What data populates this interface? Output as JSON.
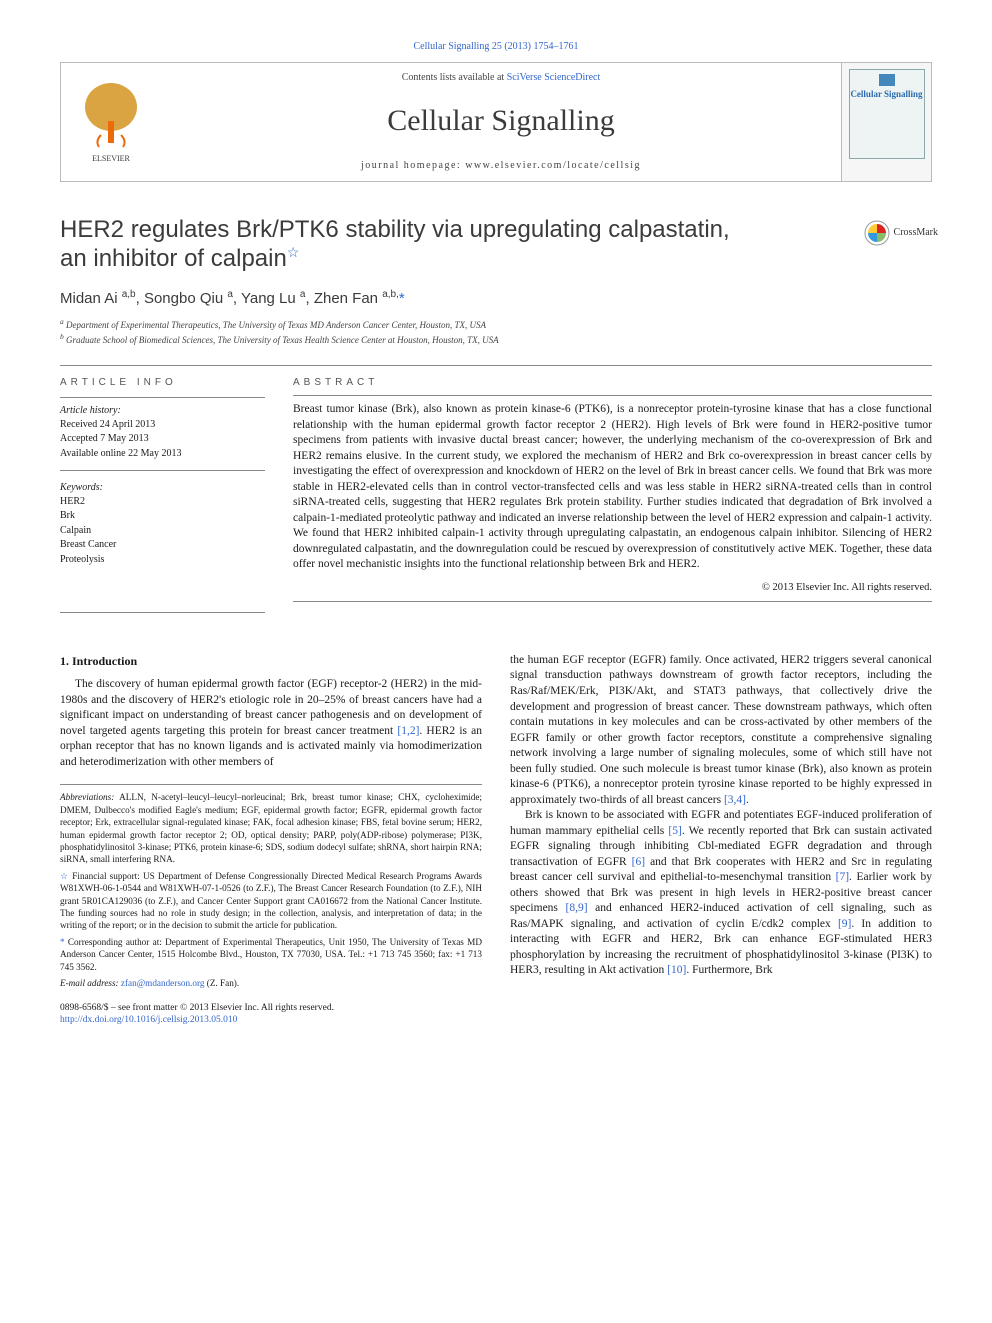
{
  "colors": {
    "link": "#3366cc",
    "text": "#1a1a1a",
    "muted": "#444444",
    "rule": "#888888",
    "elsevier_orange": "#eb6b0a",
    "elsevier_gold": "#d9a441"
  },
  "top_citation_link": "Cellular Signalling 25 (2013) 1754–1761",
  "header": {
    "contents_prefix": "Contents lists available at ",
    "contents_link_text": "SciVerse ScienceDirect",
    "journal_name": "Cellular Signalling",
    "homepage_prefix": "journal homepage: ",
    "homepage_url": "www.elsevier.com/locate/cellsig",
    "cover_title": "Cellular Signalling"
  },
  "article": {
    "title_line1": "HER2 regulates Brk/PTK6 stability via upregulating calpastatin,",
    "title_line2": "an inhibitor of calpain",
    "title_footnote_symbol": "☆",
    "crossmark_label": "CrossMark"
  },
  "authors_line": "Midan Ai <sup>a,b</sup>, Songbo Qiu <sup>a</sup>, Yang Lu <sup>a</sup>, Zhen Fan <sup>a,b,</sup><span class=\"corr-star\">*</span>",
  "affiliations": [
    "a Department of Experimental Therapeutics, The University of Texas MD Anderson Cancer Center, Houston, TX, USA",
    "b Graduate School of Biomedical Sciences, The University of Texas Health Science Center at Houston, Houston, TX, USA"
  ],
  "info": {
    "heading": "ARTICLE INFO",
    "history_label": "Article history:",
    "history": [
      "Received 24 April 2013",
      "Accepted 7 May 2013",
      "Available online 22 May 2013"
    ],
    "keywords_label": "Keywords:",
    "keywords": [
      "HER2",
      "Brk",
      "Calpain",
      "Breast Cancer",
      "Proteolysis"
    ]
  },
  "abstract": {
    "heading": "ABSTRACT",
    "text": "Breast tumor kinase (Brk), also known as protein kinase-6 (PTK6), is a nonreceptor protein-tyrosine kinase that has a close functional relationship with the human epidermal growth factor receptor 2 (HER2). High levels of Brk were found in HER2-positive tumor specimens from patients with invasive ductal breast cancer; however, the underlying mechanism of the co-overexpression of Brk and HER2 remains elusive. In the current study, we explored the mechanism of HER2 and Brk co-overexpression in breast cancer cells by investigating the effect of overexpression and knockdown of HER2 on the level of Brk in breast cancer cells. We found that Brk was more stable in HER2-elevated cells than in control vector-transfected cells and was less stable in HER2 siRNA-treated cells than in control siRNA-treated cells, suggesting that HER2 regulates Brk protein stability. Further studies indicated that degradation of Brk involved a calpain-1-mediated proteolytic pathway and indicated an inverse relationship between the level of HER2 expression and calpain-1 activity. We found that HER2 inhibited calpain-1 activity through upregulating calpastatin, an endogenous calpain inhibitor. Silencing of HER2 downregulated calpastatin, and the downregulation could be rescued by overexpression of constitutively active MEK. Together, these data offer novel mechanistic insights into the functional relationship between Brk and HER2.",
    "copyright": "© 2013 Elsevier Inc. All rights reserved."
  },
  "body": {
    "section_heading": "1. Introduction",
    "left_p1": "The discovery of human epidermal growth factor (EGF) receptor-2 (HER2) in the mid-1980s and the discovery of HER2's etiologic role in 20–25% of breast cancers have had a significant impact on understanding of breast cancer pathogenesis and on development of novel targeted agents targeting this protein for breast cancer treatment <span class=\"cite\">[1,2]</span>. HER2 is an orphan receptor that has no known ligands and is activated mainly via homodimerization and heterodimerization with other members of",
    "right_p1": "the human EGF receptor (EGFR) family. Once activated, HER2 triggers several canonical signal transduction pathways downstream of growth factor receptors, including the Ras/Raf/MEK/Erk, PI3K/Akt, and STAT3 pathways, that collectively drive the development and progression of breast cancer. These downstream pathways, which often contain mutations in key molecules and can be cross-activated by other members of the EGFR family or other growth factor receptors, constitute a comprehensive signaling network involving a large number of signaling molecules, some of which still have not been fully studied. One such molecule is breast tumor kinase (Brk), also known as protein kinase-6 (PTK6), a nonreceptor protein tyrosine kinase reported to be highly expressed in approximately two-thirds of all breast cancers <span class=\"cite\">[3,4]</span>.",
    "right_p2": "Brk is known to be associated with EGFR and potentiates EGF-induced proliferation of human mammary epithelial cells <span class=\"cite\">[5]</span>. We recently reported that Brk can sustain activated EGFR signaling through inhibiting Cbl-mediated EGFR degradation and through transactivation of EGFR <span class=\"cite\">[6]</span> and that Brk cooperates with HER2 and Src in regulating breast cancer cell survival and epithelial-to-mesenchymal transition <span class=\"cite\">[7]</span>. Earlier work by others showed that Brk was present in high levels in HER2-positive breast cancer specimens <span class=\"cite\">[8,9]</span> and enhanced HER2-induced activation of cell signaling, such as Ras/MAPK signaling, and activation of cyclin E/cdk2 complex <span class=\"cite\">[9]</span>. In addition to interacting with EGFR and HER2, Brk can enhance EGF-stimulated HER3 phosphorylation by increasing the recruitment of phosphatidylinositol 3-kinase (PI3K) to HER3, resulting in Akt activation <span class=\"cite\">[10]</span>. Furthermore, Brk"
  },
  "footnotes": {
    "abbrev_label": "Abbreviations:",
    "abbrev_text": " ALLN, N-acetyl–leucyl–leucyl–norleucinal; Brk, breast tumor kinase; CHX, cycloheximide; DMEM, Dulbecco's modified Eagle's medium; EGF, epidermal growth factor; EGFR, epidermal growth factor receptor; Erk, extracellular signal-regulated kinase; FAK, focal adhesion kinase; FBS, fetal bovine serum; HER2, human epidermal growth factor receptor 2; OD, optical density; PARP, poly(ADP-ribose) polymerase; PI3K, phosphatidylinositol 3-kinase; PTK6, protein kinase-6; SDS, sodium dodecyl sulfate; shRNA, short hairpin RNA; siRNA, small interfering RNA.",
    "funding_symbol": "☆",
    "funding_text": " Financial support: US Department of Defense Congressionally Directed Medical Research Programs Awards W81XWH-06-1-0544 and W81XWH-07-1-0526 (to Z.F.), The Breast Cancer Research Foundation (to Z.F.), NIH grant 5R01CA129036 (to Z.F.), and Cancer Center Support grant CA016672 from the National Cancer Institute. The funding sources had no role in study design; in the collection, analysis, and interpretation of data; in the writing of the report; or in the decision to submit the article for publication.",
    "corr_symbol": "*",
    "corr_text": " Corresponding author at: Department of Experimental Therapeutics, Unit 1950, The University of Texas MD Anderson Cancer Center, 1515 Holcombe Blvd., Houston, TX 77030, USA. Tel.: +1 713 745 3560; fax: +1 713 745 3562.",
    "email_label": "E-mail address: ",
    "email": "zfan@mdanderson.org",
    "email_suffix": " (Z. Fan)."
  },
  "footer": {
    "line1": "0898-6568/$ – see front matter © 2013 Elsevier Inc. All rights reserved.",
    "doi": "http://dx.doi.org/10.1016/j.cellsig.2013.05.010"
  }
}
